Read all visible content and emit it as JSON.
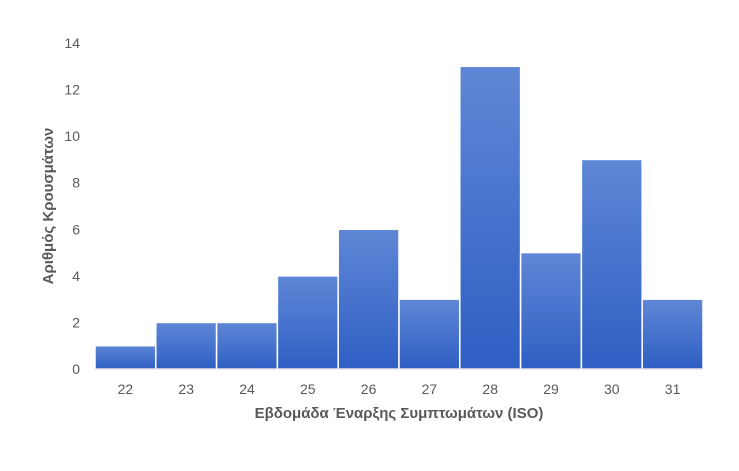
{
  "chart_data": {
    "type": "bar",
    "title": "",
    "xlabel": "Εβδομάδα Έναρξης Συμπτωμάτων (ISO)",
    "ylabel": "Αριθμός Κρουσμάτων",
    "categories": [
      "22",
      "23",
      "24",
      "25",
      "26",
      "27",
      "28",
      "29",
      "30",
      "31"
    ],
    "values": [
      1,
      2,
      2,
      4,
      6,
      3,
      13,
      5,
      9,
      3
    ],
    "ylim": [
      0,
      14
    ],
    "yticks": [
      "0",
      "2",
      "4",
      "6",
      "8",
      "10",
      "12",
      "14"
    ],
    "grid": false,
    "legend": "none",
    "bar_color_top": "#5f87d6",
    "bar_color_bottom": "#2f5fc4",
    "bar_edge_color": "#ffffff",
    "axis_color": "#d9d9d9",
    "text_color": "#595959"
  }
}
